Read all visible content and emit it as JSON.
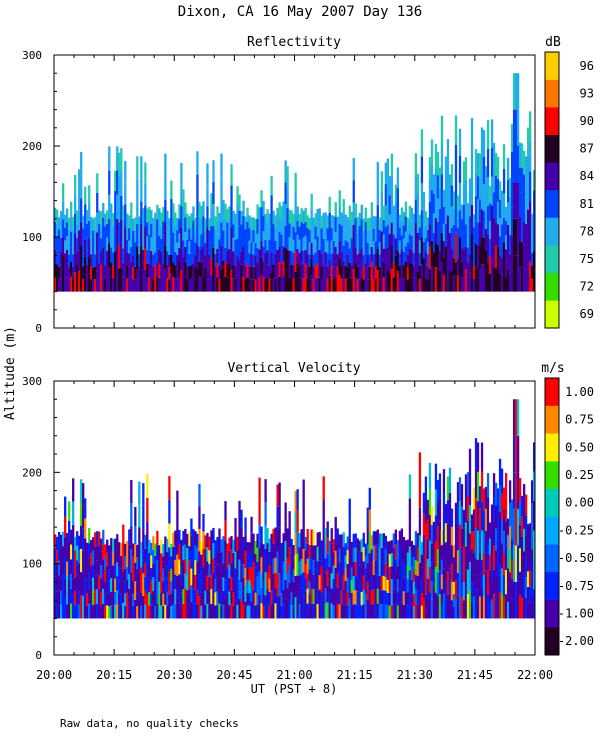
{
  "figure": {
    "title": "Dixon, CA 16 May 2007  Day 136",
    "ylabel": "Altitude (m)",
    "xlabel": "UT  (PST + 8)",
    "footnote": "Raw data, no quality checks"
  },
  "chart_data": [
    {
      "type": "heatmap",
      "title": "Reflectivity",
      "unit": "dB",
      "x_ticks": [
        "20:00",
        "20:15",
        "20:30",
        "20:45",
        "21:00",
        "21:15",
        "21:30",
        "21:45",
        "22:00"
      ],
      "xlim_hours": [
        20.0,
        22.0
      ],
      "y_ticks": [
        "0",
        "100",
        "200",
        "300"
      ],
      "ylim": [
        0,
        300
      ],
      "colorbar": {
        "labels": [
          "69",
          "72",
          "75",
          "78",
          "81",
          "84",
          "87",
          "90",
          "93",
          "96"
        ],
        "colors": [
          "#ccff00",
          "#33dd00",
          "#22ccaa",
          "#22aaee",
          "#0044ff",
          "#4400aa",
          "#220022",
          "#ff0000",
          "#ff7700",
          "#ffcc00"
        ]
      },
      "data_floor_m": 40,
      "echo_top_m": {
        "typical_range": [
          120,
          200
        ],
        "max": 280,
        "max_time": "21:55"
      }
    },
    {
      "type": "heatmap",
      "title": "Vertical Velocity",
      "unit": "m/s",
      "x_ticks": [
        "20:00",
        "20:15",
        "20:30",
        "20:45",
        "21:00",
        "21:15",
        "21:30",
        "21:45",
        "22:00"
      ],
      "xlim_hours": [
        20.0,
        22.0
      ],
      "y_ticks": [
        "0",
        "100",
        "200",
        "300"
      ],
      "ylim": [
        0,
        300
      ],
      "colorbar": {
        "labels": [
          "-2.00",
          "-1.00",
          "-0.75",
          "-0.50",
          "-0.25",
          "0.00",
          "0.25",
          "0.50",
          "0.75",
          "1.00"
        ],
        "colors": [
          "#220022",
          "#4400aa",
          "#0022ff",
          "#0066ff",
          "#00aaff",
          "#00ccbb",
          "#33dd00",
          "#ffee00",
          "#ff8800",
          "#ff0000"
        ]
      },
      "data_floor_m": 40,
      "echo_top_m": {
        "typical_range": [
          120,
          200
        ],
        "max": 280,
        "max_time": "21:55"
      }
    }
  ]
}
